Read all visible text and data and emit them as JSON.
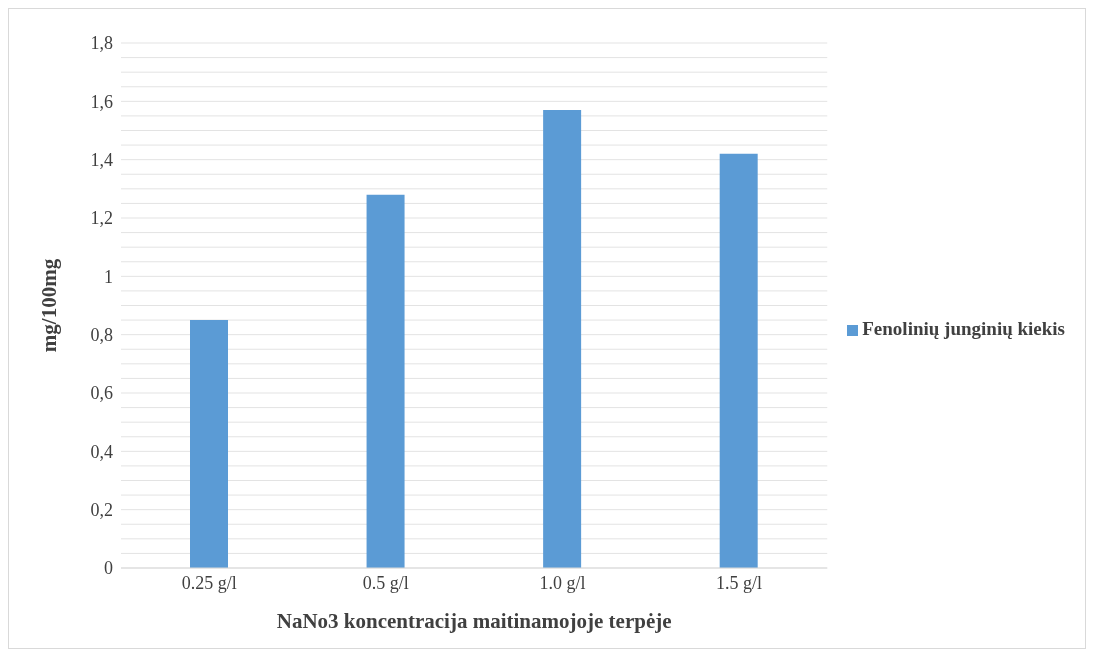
{
  "chart_data": {
    "type": "bar",
    "xlabel": "NaNo3 koncentracija maitinamojoje terpėje",
    "ylabel": "mg/100mg",
    "categories": [
      "0.25 g/l",
      "0.5 g/l",
      "1.0 g/l",
      "1.5 g/l"
    ],
    "series": [
      {
        "name": "Fenolinių junginių kiekis",
        "color": "#5b9bd5",
        "values": [
          0.85,
          1.28,
          1.57,
          1.42
        ]
      }
    ],
    "ylim": [
      0,
      1.8
    ],
    "yticks": [
      0,
      {
        "value": 0.05,
        "label": null
      },
      {
        "value": 0.1,
        "label": null
      },
      {
        "value": 0.15,
        "label": null
      },
      {
        "value": 0.2,
        "label": "0,2"
      },
      {
        "value": 0.25,
        "label": null
      },
      {
        "value": 0.3,
        "label": null
      },
      {
        "value": 0.35,
        "label": null
      },
      {
        "value": 0.4,
        "label": "0,4"
      },
      {
        "value": 0.45,
        "label": null
      },
      {
        "value": 0.5,
        "label": null
      },
      {
        "value": 0.55,
        "label": null
      },
      {
        "value": 0.6,
        "label": "0,6"
      },
      {
        "value": 0.65,
        "label": null
      },
      {
        "value": 0.7,
        "label": null
      },
      {
        "value": 0.75,
        "label": null
      },
      {
        "value": 0.8,
        "label": "0,8"
      },
      {
        "value": 0.85,
        "label": null
      },
      {
        "value": 0.9,
        "label": null
      },
      {
        "value": 0.95,
        "label": null
      },
      1,
      {
        "value": 1.05,
        "label": null
      },
      {
        "value": 1.1,
        "label": null
      },
      {
        "value": 1.15,
        "label": null
      },
      {
        "value": 1.2,
        "label": "1,2"
      },
      {
        "value": 1.25,
        "label": null
      },
      {
        "value": 1.3,
        "label": null
      },
      {
        "value": 1.35,
        "label": null
      },
      {
        "value": 1.4,
        "label": "1,4"
      },
      {
        "value": 1.45,
        "label": null
      },
      {
        "value": 1.5,
        "label": null
      },
      {
        "value": 1.55,
        "label": null
      },
      {
        "value": 1.6,
        "label": "1,6"
      },
      {
        "value": 1.65,
        "label": null
      },
      {
        "value": 1.7,
        "label": null
      },
      {
        "value": 1.75,
        "label": null
      },
      {
        "value": 1.8,
        "label": "1,8"
      }
    ],
    "grid": "y",
    "legend": "right"
  }
}
